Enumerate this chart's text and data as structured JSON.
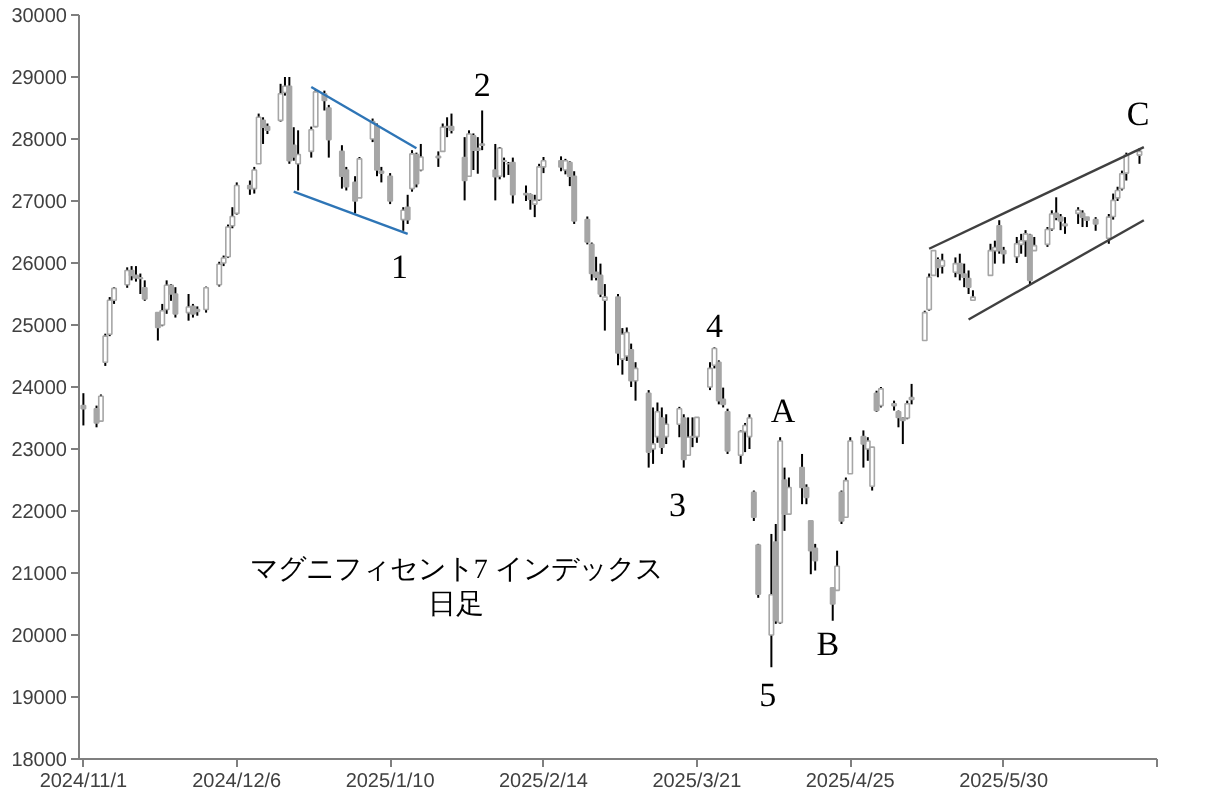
{
  "chart_data": {
    "type": "candlestick",
    "title": "マグニフィセント7 インデックス",
    "subtitle": "日足",
    "xlim": [
      "2024-10-31",
      "2025-07-04"
    ],
    "xticks": [
      {
        "value": "2024-11-01",
        "label": "2024/11/1"
      },
      {
        "value": "2024-12-06",
        "label": "2024/12/6"
      },
      {
        "value": "2025-01-10",
        "label": "2025/1/10"
      },
      {
        "value": "2025-02-14",
        "label": "2025/2/14"
      },
      {
        "value": "2025-03-21",
        "label": "2025/3/21"
      },
      {
        "value": "2025-04-25",
        "label": "2025/4/25"
      },
      {
        "value": "2025-05-30",
        "label": "2025/5/30"
      },
      {
        "value": "2025-07-04",
        "label": null
      }
    ],
    "ylim": [
      18000,
      30000
    ],
    "yticks": [
      18000,
      19000,
      20000,
      21000,
      22000,
      23000,
      24000,
      25000,
      26000,
      27000,
      28000,
      29000,
      30000
    ],
    "series": [
      {
        "color": "#a6a6a6",
        "x": [
          "2024-11-01",
          "2024-11-04",
          "2024-11-05",
          "2024-11-06",
          "2024-11-07",
          "2024-11-08",
          "2024-11-11",
          "2024-11-12",
          "2024-11-13",
          "2024-11-14",
          "2024-11-15",
          "2024-11-18",
          "2024-11-19",
          "2024-11-20",
          "2024-11-21",
          "2024-11-22",
          "2024-11-25",
          "2024-11-26",
          "2024-11-27",
          "2024-11-29",
          "2024-12-02",
          "2024-12-03",
          "2024-12-04",
          "2024-12-05",
          "2024-12-06",
          "2024-12-09",
          "2024-12-10",
          "2024-12-11",
          "2024-12-12",
          "2024-12-13",
          "2024-12-16",
          "2024-12-17",
          "2024-12-18",
          "2024-12-19",
          "2024-12-20",
          "2024-12-23",
          "2024-12-24",
          "2024-12-26",
          "2024-12-27",
          "2024-12-30",
          "2024-12-31",
          "2025-01-02",
          "2025-01-03",
          "2025-01-06",
          "2025-01-07",
          "2025-01-08",
          "2025-01-10",
          "2025-01-13",
          "2025-01-14",
          "2025-01-15",
          "2025-01-16",
          "2025-01-17",
          "2025-01-21",
          "2025-01-22",
          "2025-01-23",
          "2025-01-24",
          "2025-01-27",
          "2025-01-28",
          "2025-01-29",
          "2025-01-30",
          "2025-01-31",
          "2025-02-03",
          "2025-02-04",
          "2025-02-05",
          "2025-02-06",
          "2025-02-07",
          "2025-02-10",
          "2025-02-11",
          "2025-02-12",
          "2025-02-13",
          "2025-02-14",
          "2025-02-18",
          "2025-02-19",
          "2025-02-20",
          "2025-02-21",
          "2025-02-24",
          "2025-02-25",
          "2025-02-26",
          "2025-02-27",
          "2025-02-28",
          "2025-03-03",
          "2025-03-04",
          "2025-03-05",
          "2025-03-06",
          "2025-03-07",
          "2025-03-10",
          "2025-03-11",
          "2025-03-12",
          "2025-03-13",
          "2025-03-14",
          "2025-03-17",
          "2025-03-18",
          "2025-03-19",
          "2025-03-20",
          "2025-03-21",
          "2025-03-24",
          "2025-03-25",
          "2025-03-26",
          "2025-03-27",
          "2025-03-28",
          "2025-03-31",
          "2025-04-01",
          "2025-04-02",
          "2025-04-03",
          "2025-04-04",
          "2025-04-07",
          "2025-04-08",
          "2025-04-09",
          "2025-04-10",
          "2025-04-11",
          "2025-04-14",
          "2025-04-15",
          "2025-04-16",
          "2025-04-17",
          "2025-04-21",
          "2025-04-22",
          "2025-04-23",
          "2025-04-24",
          "2025-04-25",
          "2025-04-28",
          "2025-04-29",
          "2025-04-30",
          "2025-05-01",
          "2025-05-02",
          "2025-05-05",
          "2025-05-06",
          "2025-05-07",
          "2025-05-08",
          "2025-05-09",
          "2025-05-12",
          "2025-05-13",
          "2025-05-14",
          "2025-05-15",
          "2025-05-16",
          "2025-05-19",
          "2025-05-20",
          "2025-05-21",
          "2025-05-22",
          "2025-05-23",
          "2025-05-27",
          "2025-05-28",
          "2025-05-29",
          "2025-05-30",
          "2025-06-02",
          "2025-06-03",
          "2025-06-04",
          "2025-06-05",
          "2025-06-06",
          "2025-06-09",
          "2025-06-10",
          "2025-06-11",
          "2025-06-12",
          "2025-06-13",
          "2025-06-16",
          "2025-06-17",
          "2025-06-18",
          "2025-06-20",
          "2025-06-23",
          "2025-06-24",
          "2025-06-25",
          "2025-06-26",
          "2025-06-27",
          "2025-06-30"
        ],
        "ohlc": [
          [
            23700,
            23900,
            23380,
            23650
          ],
          [
            23650,
            23700,
            23350,
            23420
          ],
          [
            23450,
            23880,
            23440,
            23850
          ],
          [
            24400,
            24860,
            24340,
            24820
          ],
          [
            24850,
            25450,
            24820,
            25400
          ],
          [
            25400,
            25610,
            25340,
            25590
          ],
          [
            25650,
            25930,
            25600,
            25880
          ],
          [
            25880,
            25950,
            25720,
            25800
          ],
          [
            25800,
            25950,
            25700,
            25760
          ],
          [
            25760,
            25830,
            25500,
            25750
          ],
          [
            25600,
            25720,
            25390,
            25420
          ],
          [
            25200,
            25210,
            24750,
            24960
          ],
          [
            25000,
            25340,
            24980,
            25230
          ],
          [
            25250,
            25720,
            25180,
            25640
          ],
          [
            25640,
            25660,
            25390,
            25500
          ],
          [
            25500,
            25610,
            25120,
            25180
          ],
          [
            25200,
            25500,
            25070,
            25290
          ],
          [
            25300,
            25340,
            25120,
            25180
          ],
          [
            25250,
            25300,
            25150,
            25220
          ],
          [
            25250,
            25620,
            25200,
            25600
          ],
          [
            25650,
            26020,
            25620,
            25980
          ],
          [
            26000,
            26120,
            25950,
            26080
          ],
          [
            26100,
            26620,
            26080,
            26580
          ],
          [
            26600,
            26900,
            26560,
            26750
          ],
          [
            26800,
            27300,
            26780,
            27250
          ],
          [
            27250,
            27330,
            27100,
            27200
          ],
          [
            27200,
            27550,
            27120,
            27500
          ],
          [
            27600,
            28410,
            27600,
            28350
          ],
          [
            28300,
            28350,
            27920,
            28190
          ],
          [
            28200,
            28250,
            28080,
            28140
          ],
          [
            28300,
            28890,
            28280,
            28730
          ],
          [
            28750,
            29000,
            28700,
            28850
          ],
          [
            28850,
            29000,
            27600,
            27650
          ],
          [
            27900,
            28190,
            27650,
            27710
          ],
          [
            27600,
            28140,
            27170,
            27750
          ],
          [
            27800,
            28200,
            27700,
            28150
          ],
          [
            28200,
            28800,
            28190,
            28760
          ],
          [
            28730,
            28780,
            28460,
            28620
          ],
          [
            28500,
            28550,
            27700,
            27990
          ],
          [
            27800,
            27900,
            27200,
            27400
          ],
          [
            27500,
            27550,
            27170,
            27230
          ],
          [
            27300,
            27400,
            26800,
            27000
          ],
          [
            27050,
            27710,
            27050,
            27680
          ],
          [
            28000,
            28330,
            27950,
            28280
          ],
          [
            28200,
            28250,
            27400,
            27500
          ],
          [
            27480,
            27550,
            27300,
            27450
          ],
          [
            27400,
            27450,
            26950,
            27000
          ],
          [
            26700,
            26900,
            26520,
            26850
          ],
          [
            26900,
            27100,
            26630,
            26700
          ],
          [
            27200,
            27820,
            27150,
            27760
          ],
          [
            27750,
            27780,
            27220,
            27280
          ],
          [
            27500,
            27920,
            27480,
            27710
          ],
          [
            27720,
            27800,
            27550,
            27700
          ],
          [
            27800,
            28250,
            27800,
            28190
          ],
          [
            28200,
            28350,
            28030,
            28190
          ],
          [
            28200,
            28410,
            28090,
            28140
          ],
          [
            27700,
            28030,
            27010,
            27330
          ],
          [
            27400,
            28140,
            27390,
            28080
          ],
          [
            28050,
            28090,
            27500,
            27820
          ],
          [
            27850,
            28030,
            27440,
            27820
          ],
          [
            27900,
            28460,
            27820,
            27920
          ],
          [
            27500,
            27920,
            27010,
            27390
          ],
          [
            27400,
            27870,
            27350,
            27850
          ],
          [
            27650,
            27700,
            27380,
            27640
          ],
          [
            27600,
            27630,
            27420,
            27600
          ],
          [
            27620,
            27700,
            26960,
            27100
          ],
          [
            27100,
            27250,
            27000,
            27120
          ],
          [
            27100,
            27120,
            26860,
            27030
          ],
          [
            26950,
            27100,
            26740,
            27010
          ],
          [
            27020,
            27600,
            27000,
            27550
          ],
          [
            27550,
            27710,
            27450,
            27650
          ],
          [
            27650,
            27720,
            27480,
            27550
          ],
          [
            27500,
            27680,
            27430,
            27650
          ],
          [
            27620,
            27640,
            27240,
            27400
          ],
          [
            27400,
            27480,
            26630,
            26680
          ],
          [
            26700,
            26750,
            26300,
            26340
          ],
          [
            26300,
            26330,
            25720,
            25830
          ],
          [
            25850,
            26100,
            25720,
            25770
          ],
          [
            25800,
            25990,
            25450,
            25500
          ],
          [
            25400,
            25660,
            24910,
            25450
          ],
          [
            25450,
            25500,
            24350,
            24550
          ],
          [
            24450,
            24950,
            24200,
            24850
          ],
          [
            24500,
            24960,
            24420,
            24880
          ],
          [
            24600,
            24700,
            24000,
            24100
          ],
          [
            24100,
            24400,
            23780,
            24300
          ],
          [
            23900,
            23950,
            22700,
            22950
          ],
          [
            23000,
            23670,
            22760,
            23080
          ],
          [
            23200,
            23750,
            23100,
            23600
          ],
          [
            23500,
            23670,
            22920,
            23030
          ],
          [
            23200,
            23560,
            23080,
            23400
          ],
          [
            23400,
            23680,
            23190,
            23650
          ],
          [
            23500,
            23560,
            22700,
            22830
          ],
          [
            22900,
            23510,
            22900,
            23190
          ],
          [
            23200,
            23510,
            23030,
            23190
          ],
          [
            23200,
            23510,
            23100,
            23510
          ],
          [
            24000,
            24400,
            23950,
            24300
          ],
          [
            24350,
            24640,
            24300,
            24620
          ],
          [
            24400,
            24430,
            23720,
            23780
          ],
          [
            23800,
            23990,
            23670,
            23720
          ],
          [
            23600,
            23650,
            22920,
            22970
          ],
          [
            22900,
            23300,
            22760,
            23280
          ],
          [
            23280,
            23420,
            22950,
            23380
          ],
          [
            23200,
            23560,
            23000,
            23500
          ],
          [
            22300,
            22330,
            21840,
            21900
          ],
          [
            21450,
            21470,
            20600,
            20660
          ],
          [
            20000,
            21630,
            19480,
            20650
          ],
          [
            21500,
            21790,
            20180,
            20230
          ],
          [
            20200,
            23190,
            20180,
            23130
          ],
          [
            22500,
            22700,
            21680,
            21950
          ],
          [
            21950,
            22540,
            21950,
            22380
          ],
          [
            22700,
            22920,
            22110,
            22380
          ],
          [
            22380,
            22430,
            22110,
            22220
          ],
          [
            21840,
            21840,
            20980,
            21360
          ],
          [
            21400,
            21470,
            21040,
            21200
          ],
          [
            20760,
            20770,
            20230,
            20500
          ],
          [
            20720,
            21360,
            20710,
            21110
          ],
          [
            22300,
            22330,
            21790,
            21840
          ],
          [
            21900,
            22540,
            21900,
            22490
          ],
          [
            22600,
            23190,
            22600,
            23130
          ],
          [
            23200,
            23300,
            22700,
            23080
          ],
          [
            23000,
            23190,
            22810,
            23130
          ],
          [
            22400,
            23030,
            22330,
            23030
          ],
          [
            23900,
            23940,
            23600,
            23620
          ],
          [
            23700,
            24000,
            23670,
            23970
          ],
          [
            23700,
            23780,
            23620,
            23730
          ],
          [
            23600,
            23620,
            23350,
            23510
          ],
          [
            23500,
            23510,
            23080,
            23460
          ],
          [
            23500,
            23780,
            23480,
            23730
          ],
          [
            23800,
            24050,
            23720,
            23830
          ],
          [
            24750,
            25230,
            24750,
            25200
          ],
          [
            25250,
            25830,
            25230,
            25770
          ],
          [
            25800,
            26200,
            25800,
            26200
          ],
          [
            26050,
            26090,
            25770,
            25930
          ],
          [
            25950,
            26150,
            25830,
            26040
          ],
          [
            25850,
            26090,
            25770,
            25990
          ],
          [
            25990,
            26150,
            25720,
            25830
          ],
          [
            25820,
            25990,
            25610,
            25770
          ],
          [
            25750,
            25880,
            25500,
            25610
          ],
          [
            25400,
            25560,
            25390,
            25450
          ],
          [
            25800,
            26310,
            25800,
            26200
          ],
          [
            26200,
            26360,
            25990,
            26250
          ],
          [
            26600,
            26690,
            26150,
            26200
          ],
          [
            26200,
            26260,
            25990,
            26150
          ],
          [
            26100,
            26420,
            26000,
            26310
          ],
          [
            26300,
            26470,
            26150,
            26360
          ],
          [
            26360,
            26530,
            26100,
            26470
          ],
          [
            26450,
            26470,
            25660,
            25720
          ],
          [
            26200,
            26420,
            26200,
            26280
          ],
          [
            26300,
            26580,
            26260,
            26540
          ],
          [
            26550,
            26850,
            26520,
            26790
          ],
          [
            26800,
            27060,
            26690,
            26740
          ],
          [
            26740,
            26790,
            26530,
            26680
          ],
          [
            26600,
            26740,
            26470,
            26630
          ],
          [
            26800,
            26900,
            26630,
            26850
          ],
          [
            26800,
            26850,
            26580,
            26740
          ],
          [
            26740,
            26740,
            26580,
            26690
          ],
          [
            26700,
            26740,
            26520,
            26630
          ],
          [
            26400,
            26790,
            26310,
            26740
          ],
          [
            26750,
            27120,
            26700,
            27010
          ],
          [
            27050,
            27230,
            27000,
            27170
          ],
          [
            27200,
            27490,
            27170,
            27440
          ],
          [
            27450,
            27780,
            27330,
            27740
          ],
          [
            27740,
            27850,
            27600,
            27800
          ]
        ]
      },
      {
        "type": "line",
        "color": "#2e75b6",
        "x": [
          "2024-12-23",
          "2025-01-16"
        ],
        "values": [
          28840,
          27850
        ]
      },
      {
        "type": "line",
        "color": "#2e75b6",
        "x": [
          "2024-12-19",
          "2025-01-14"
        ],
        "values": [
          27150,
          26470
        ]
      },
      {
        "type": "line",
        "color": "#404040",
        "x": [
          "2025-05-13",
          "2025-07-01"
        ],
        "values": [
          26230,
          27870
        ]
      },
      {
        "type": "line",
        "color": "#404040",
        "x": [
          "2025-05-22",
          "2025-07-01"
        ],
        "values": [
          25090,
          26690
        ]
      }
    ],
    "annotations": [
      "1",
      "2",
      "3",
      "4",
      "5",
      "A",
      "B",
      "C"
    ]
  }
}
